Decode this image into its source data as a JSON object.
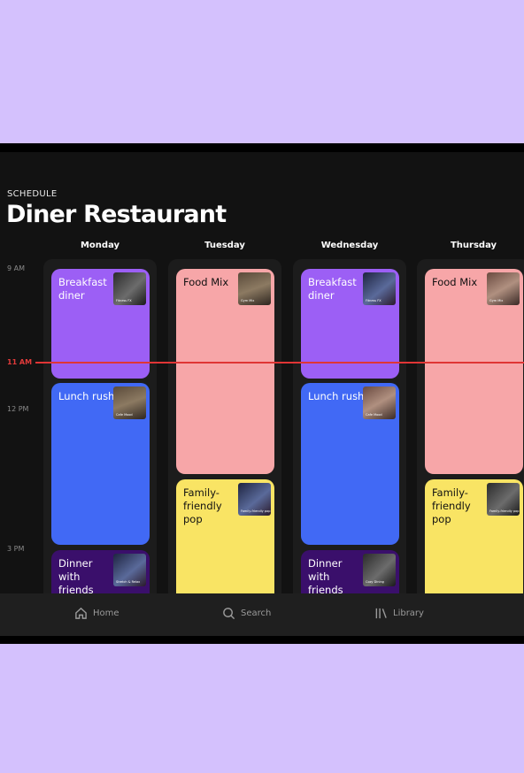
{
  "schedule": {
    "eyebrow": "SCHEDULE",
    "title": "Diner Restaurant"
  },
  "days": [
    "Monday",
    "Tuesday",
    "Wednesday",
    "Thursday"
  ],
  "times": [
    {
      "label": "9 AM"
    },
    {
      "label": "11 AM",
      "current": true
    },
    {
      "label": "12 PM"
    },
    {
      "label": "3 PM"
    }
  ],
  "columns": [
    {
      "slots": [
        {
          "title": "Breakfast diner",
          "color": "#9c5ff5",
          "text_color": "#ffffff",
          "thumb_caption": "Fitness FX"
        },
        {
          "title": "Lunch rush",
          "color": "#4169f5",
          "text_color": "#ffffff",
          "thumb_caption": "Cafe Mood"
        },
        {
          "title": "Dinner with friends",
          "color": "#3a0f6b",
          "text_color": "#ffffff",
          "thumb_caption": "Stretch & Relax"
        }
      ]
    },
    {
      "slots": [
        {
          "title": "Food Mix",
          "color": "#f7a6a8",
          "text_color": "#111111",
          "thumb_caption": "Gym Mix"
        },
        {
          "title": "Family-friendly pop",
          "color": "#f9e464",
          "text_color": "#111111",
          "thumb_caption": "Family-friendly pop"
        }
      ]
    },
    {
      "slots": [
        {
          "title": "Breakfast diner",
          "color": "#9c5ff5",
          "text_color": "#ffffff",
          "thumb_caption": "Fitness FX"
        },
        {
          "title": "Lunch rush",
          "color": "#4169f5",
          "text_color": "#ffffff",
          "thumb_caption": "Cafe Mood"
        },
        {
          "title": "Dinner with friends",
          "color": "#3a0f6b",
          "text_color": "#ffffff",
          "thumb_caption": "Cozy Dining"
        }
      ]
    },
    {
      "slots": [
        {
          "title": "Food Mix",
          "color": "#f7a6a8",
          "text_color": "#111111",
          "thumb_caption": "Gym Mix"
        },
        {
          "title": "Family-friendly pop",
          "color": "#f9e464",
          "text_color": "#111111",
          "thumb_caption": "Family-friendly pop"
        }
      ]
    }
  ],
  "nav": {
    "home": {
      "label": "Home",
      "icon": "home-icon"
    },
    "search": {
      "label": "Search",
      "icon": "search-icon"
    },
    "library": {
      "label": "Library",
      "icon": "library-icon"
    }
  },
  "colors": {
    "now_line": "#e03535",
    "background": "#121212",
    "frame": "#d4c1fd"
  }
}
